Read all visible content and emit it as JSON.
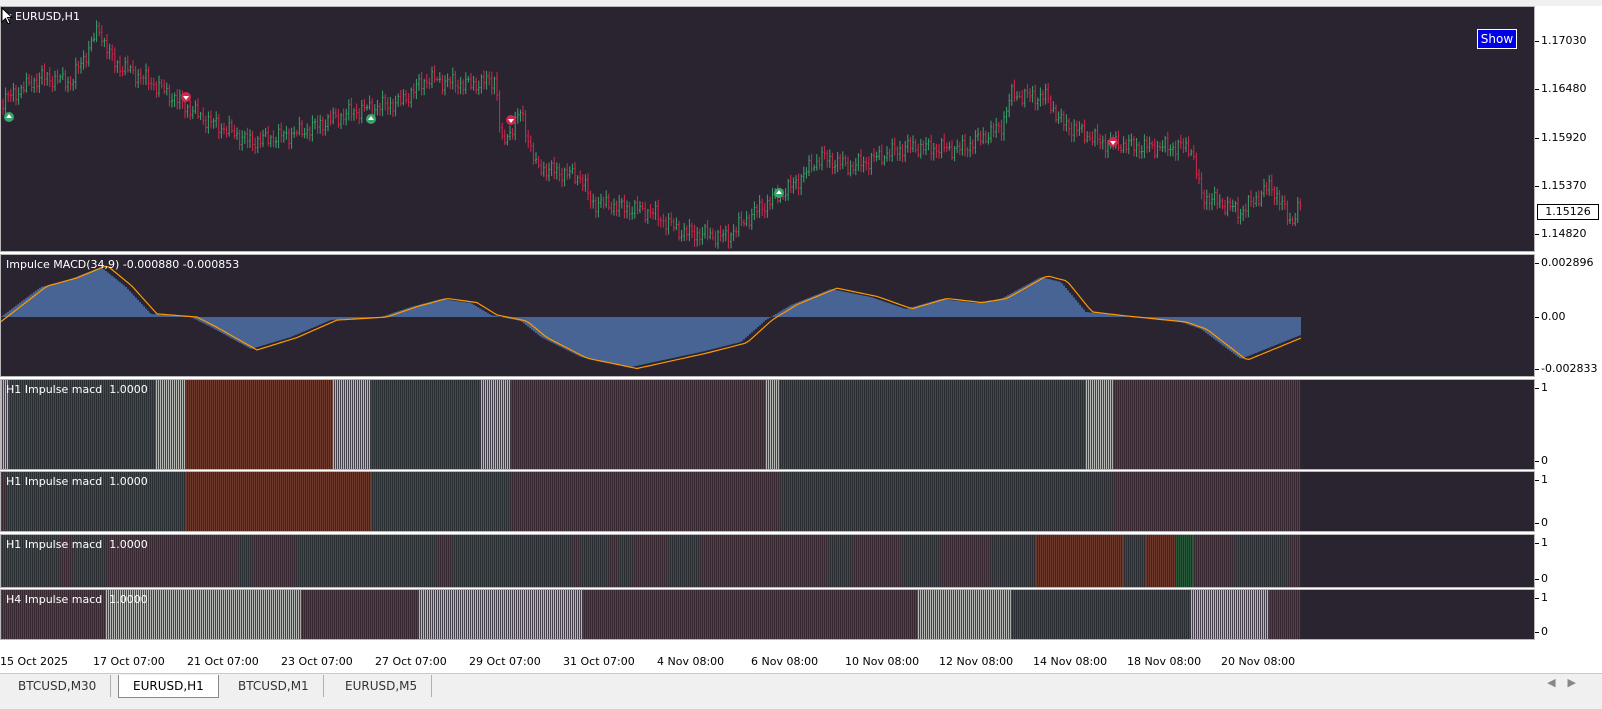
{
  "main_chart": {
    "title": "EURUSD,H1",
    "show_button": "Show",
    "price_ticks": [
      "1.17030",
      "1.16480",
      "1.15920",
      "1.15370",
      "1.14820"
    ],
    "current_price": "1.15126",
    "colors": {
      "background": "#2a2431",
      "bull": "#3aa36a",
      "bear": "#d0284c",
      "accent": "#0000e6"
    }
  },
  "macd_panel": {
    "label": "Impulce MACD(34,9) -0.000880 -0.000853",
    "ticks": [
      "0.002896",
      "0.00",
      "-0.002833"
    ],
    "colors": {
      "histogram": "#5b8fd6",
      "signal": "#ff9900"
    }
  },
  "impulse_panels": [
    {
      "label": "H1 Impulse macd  1.0000",
      "ticks": [
        "1",
        "0"
      ]
    },
    {
      "label": "H1 Impulse macd  1.0000",
      "ticks": [
        "1",
        "0"
      ]
    },
    {
      "label": "H1 Impulse macd  1.0000",
      "ticks": [
        "1",
        "0"
      ]
    },
    {
      "label": "H4 Impulse macd  1.0000",
      "ticks": [
        "1",
        "0"
      ]
    }
  ],
  "impulse_colors": {
    "green": "#2c5a3c",
    "red": "#6e3a2e",
    "gray": "#b5b8b5"
  },
  "time_labels": [
    "15 Oct 2025",
    "17 Oct 07:00",
    "21 Oct 07:00",
    "23 Oct 07:00",
    "27 Oct 07:00",
    "29 Oct 07:00",
    "31 Oct 07:00",
    "4 Nov 08:00",
    "6 Nov 08:00",
    "10 Nov 08:00",
    "12 Nov 08:00",
    "14 Nov 08:00",
    "18 Nov 08:00",
    "20 Nov 08:00"
  ],
  "tabs": [
    {
      "label": "BTCUSD,M30",
      "active": false
    },
    {
      "label": "EURUSD,H1",
      "active": true
    },
    {
      "label": "BTCUSD,M1",
      "active": false
    },
    {
      "label": "EURUSD,M5",
      "active": false
    }
  ],
  "segments": {
    "impulse_1": [
      [
        "gray",
        0,
        8
      ],
      [
        "green",
        8,
        155
      ],
      [
        "gray",
        155,
        185
      ],
      [
        "red",
        185,
        332
      ],
      [
        "gray",
        332,
        370
      ],
      [
        "green",
        370,
        480
      ],
      [
        "gray",
        480,
        510
      ],
      [
        "red",
        510,
        765
      ],
      [
        "gray",
        765,
        778
      ],
      [
        "green",
        778,
        1085
      ],
      [
        "gray",
        1085,
        1112
      ],
      [
        "red",
        1112,
        1300
      ]
    ],
    "impulse_2": [
      [
        "red",
        0,
        6
      ],
      [
        "green",
        6,
        185
      ],
      [
        "red",
        185,
        370
      ],
      [
        "green",
        370,
        510
      ],
      [
        "red",
        510,
        780
      ],
      [
        "green",
        780,
        1112
      ],
      [
        "red",
        1112,
        1300
      ]
    ],
    "impulse_3": [
      [
        "green",
        0,
        60
      ],
      [
        "red",
        60,
        72
      ],
      [
        "green",
        72,
        106
      ],
      [
        "red",
        106,
        238
      ],
      [
        "green",
        238,
        252
      ],
      [
        "red",
        252,
        296
      ],
      [
        "green",
        296,
        436
      ],
      [
        "red",
        436,
        452
      ],
      [
        "green",
        452,
        572
      ],
      [
        "red",
        572,
        580
      ],
      [
        "green",
        580,
        608
      ],
      [
        "red",
        608,
        618
      ],
      [
        "green",
        618,
        632
      ],
      [
        "red",
        632,
        668
      ],
      [
        "green",
        668,
        700
      ],
      [
        "red",
        700,
        828
      ],
      [
        "green",
        828,
        852
      ],
      [
        "red",
        852,
        902
      ],
      [
        "green",
        902,
        940
      ],
      [
        "red",
        940,
        990
      ],
      [
        "green",
        990,
        1035
      ],
      [
        "red",
        1035,
        1122
      ],
      [
        "green",
        1122,
        1145
      ],
      [
        "red",
        1145,
        1175
      ],
      [
        "green",
        1175,
        1192
      ],
      [
        "red",
        1192,
        1234
      ],
      [
        "green",
        1234,
        1288
      ],
      [
        "red",
        1288,
        1300
      ]
    ],
    "impulse_4": [
      [
        "red",
        0,
        105
      ],
      [
        "gray",
        105,
        300
      ],
      [
        "red",
        300,
        418
      ],
      [
        "gray",
        418,
        582
      ],
      [
        "red",
        582,
        917
      ],
      [
        "gray",
        917,
        1010
      ],
      [
        "green",
        1010,
        1190
      ],
      [
        "gray",
        1190,
        1268
      ],
      [
        "red",
        1268,
        1300
      ]
    ]
  }
}
